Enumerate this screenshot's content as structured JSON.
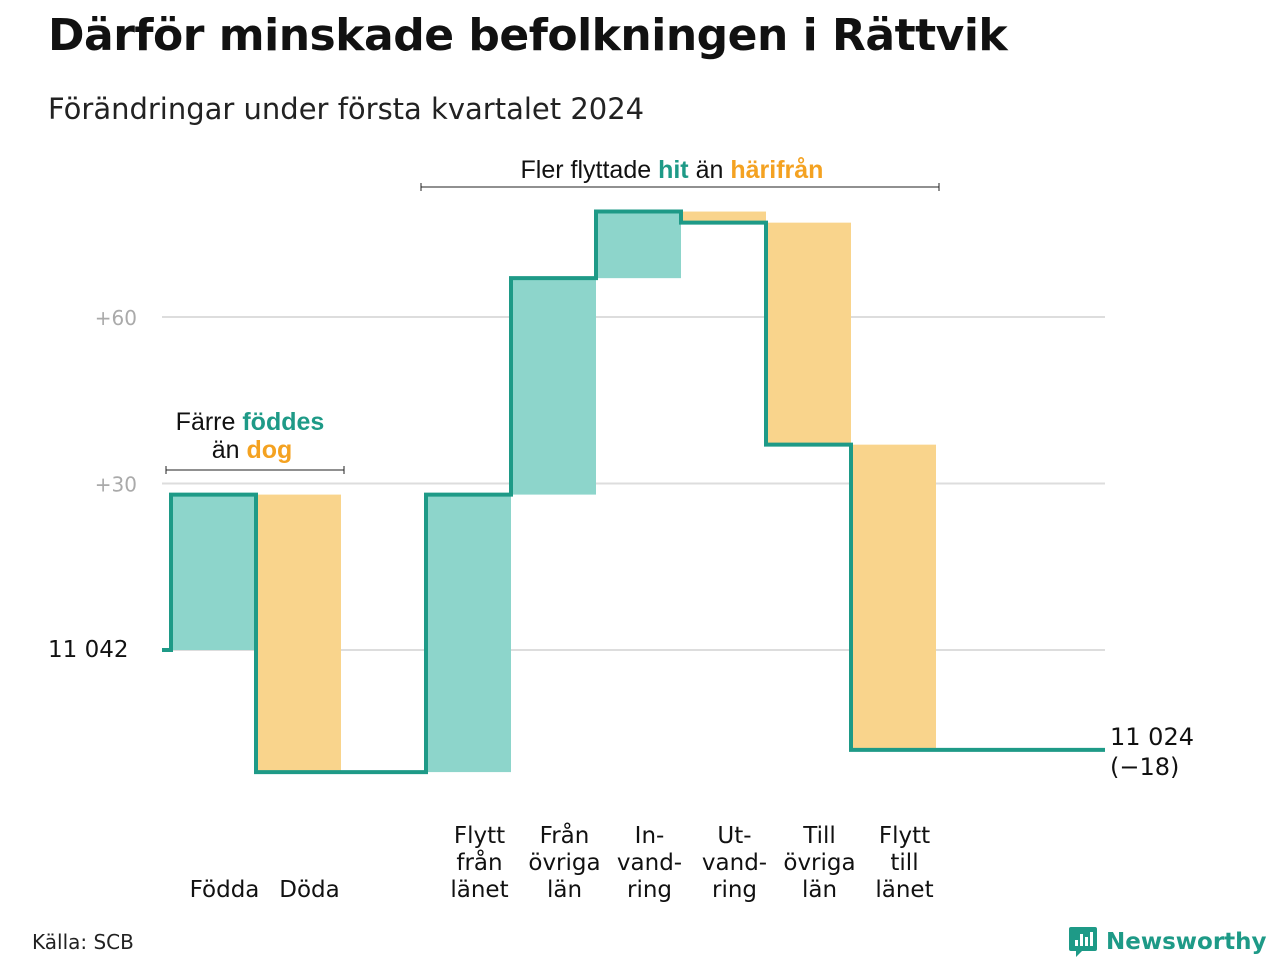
{
  "title": "Därför minskade befolkningen i Rättvik",
  "subtitle": "Förändringar under första kvartalet 2024",
  "source": "Källa: SCB",
  "brand": "Newsworthy",
  "colors": {
    "increase": "#8dd5cb",
    "decrease": "#f9d48c",
    "line": "#1e9a87",
    "accent_green": "#1e9a87",
    "accent_orange": "#f4a221",
    "grid": "#dddddd",
    "tick": "#aaaaaa"
  },
  "annotations": {
    "births": {
      "prefix": "Färre",
      "green": "föddes",
      "middle": "än",
      "orange": "dog"
    },
    "moves": {
      "prefix": "Fler flyttade",
      "green": "hit",
      "middle": "än",
      "orange": "härifrån"
    }
  },
  "start_label": "11  042",
  "end_label": "11 024",
  "end_change": "(−18)",
  "chart_data": {
    "type": "waterfall",
    "base": 11042,
    "ylim": [
      -20,
      84
    ],
    "yticks": [
      {
        "value": 0,
        "label": ""
      },
      {
        "value": 30,
        "label": "+30"
      },
      {
        "value": 60,
        "label": "+60"
      }
    ],
    "grid": true,
    "steps": [
      {
        "label": [
          "",
          "",
          "Födda"
        ],
        "change": 28
      },
      {
        "label": [
          "",
          "",
          "Döda"
        ],
        "change": -50
      },
      {
        "label": [
          "",
          "",
          ""
        ],
        "change": 0
      },
      {
        "label": [
          "Flytt",
          "från",
          "länet"
        ],
        "change": 50
      },
      {
        "label": [
          "Från",
          "övriga",
          "län"
        ],
        "change": 39
      },
      {
        "label": [
          "In-",
          "vand-",
          "ring"
        ],
        "change": 12
      },
      {
        "label": [
          "Ut-",
          "vand-",
          "ring"
        ],
        "change": -2
      },
      {
        "label": [
          "Till",
          "övriga",
          "län"
        ],
        "change": -40
      },
      {
        "label": [
          "Flytt",
          "till",
          "länet"
        ],
        "change": -55
      }
    ],
    "end_value": 11024,
    "end_change": -18
  }
}
